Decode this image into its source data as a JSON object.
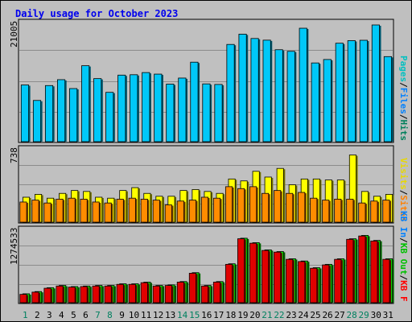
{
  "title": "Daily usage for October 2023",
  "chart_data": [
    {
      "type": "bar",
      "panel": "top",
      "categories": [
        "1",
        "2",
        "3",
        "4",
        "5",
        "6",
        "7",
        "8",
        "9",
        "10",
        "11",
        "12",
        "13",
        "14",
        "15",
        "16",
        "17",
        "18",
        "19",
        "20",
        "21",
        "22",
        "23",
        "24",
        "25",
        "26",
        "27",
        "28",
        "29",
        "30",
        "31"
      ],
      "weekend_days": [
        "1",
        "7",
        "8",
        "14",
        "15",
        "21",
        "22",
        "28",
        "29"
      ],
      "ymax_label": "21005",
      "ylim": [
        0,
        21005
      ],
      "legend": [
        {
          "name": "Pages",
          "color": "#00c0c0"
        },
        {
          "name": "Files",
          "color": "#0080ff"
        },
        {
          "name": "Hits",
          "color": "#00805c"
        }
      ],
      "series": [
        {
          "name": "Hits",
          "color": "#00c8f8",
          "values": [
            10210,
            7420,
            10100,
            11160,
            9560,
            13670,
            11350,
            8880,
            11980,
            12050,
            12440,
            12160,
            10360,
            11450,
            14310,
            10400,
            10300,
            17500,
            19350,
            18570,
            18270,
            16550,
            16260,
            20420,
            14170,
            14790,
            17720,
            18180,
            18250,
            21005,
            15310
          ]
        }
      ]
    },
    {
      "type": "bar",
      "panel": "middle",
      "categories": [
        "1",
        "2",
        "3",
        "4",
        "5",
        "6",
        "7",
        "8",
        "9",
        "10",
        "11",
        "12",
        "13",
        "14",
        "15",
        "16",
        "17",
        "18",
        "19",
        "20",
        "21",
        "22",
        "23",
        "24",
        "25",
        "26",
        "27",
        "28",
        "29",
        "30",
        "31"
      ],
      "ymax_label": "738",
      "ylim": [
        0,
        738
      ],
      "legend": [
        {
          "name": "Visits",
          "color": "#e8d800"
        },
        {
          "name": "Sites",
          "color": "#ff8000"
        }
      ],
      "series": [
        {
          "name": "Visits",
          "color": "#ffff00",
          "values": [
            260,
            290,
            250,
            300,
            330,
            320,
            260,
            250,
            330,
            360,
            300,
            270,
            270,
            330,
            340,
            320,
            300,
            450,
            430,
            530,
            470,
            560,
            390,
            450,
            450,
            440,
            440,
            700,
            320,
            270,
            290
          ]
        },
        {
          "name": "Sites",
          "color": "#ff8c00",
          "values": [
            210,
            230,
            200,
            240,
            250,
            240,
            210,
            200,
            240,
            250,
            240,
            230,
            180,
            220,
            230,
            260,
            250,
            370,
            350,
            370,
            300,
            330,
            300,
            310,
            250,
            230,
            240,
            240,
            200,
            220,
            230
          ]
        }
      ]
    },
    {
      "type": "bar",
      "panel": "bottom",
      "categories": [
        "1",
        "2",
        "3",
        "4",
        "5",
        "6",
        "7",
        "8",
        "9",
        "10",
        "11",
        "12",
        "13",
        "14",
        "15",
        "16",
        "17",
        "18",
        "19",
        "20",
        "21",
        "22",
        "23",
        "24",
        "25",
        "26",
        "27",
        "28",
        "29",
        "30",
        "31"
      ],
      "ymax_label": "1274533",
      "ylim": [
        0,
        1274533
      ],
      "legend": [
        {
          "name": "KB In",
          "color": "#0080ff"
        },
        {
          "name": "KB Out",
          "color": "#00c000"
        },
        {
          "name": "KB F",
          "color": "#ff0000"
        }
      ],
      "series": [
        {
          "name": "KB Out",
          "color": "#00e000",
          "values": [
            160000,
            200000,
            270000,
            310000,
            290000,
            300000,
            310000,
            310000,
            340000,
            340000,
            370000,
            310000,
            320000,
            380000,
            540000,
            310000,
            380000,
            700000,
            1160000,
            1080000,
            950000,
            920000,
            790000,
            750000,
            630000,
            690000,
            790000,
            1150000,
            1210000,
            1120000,
            790000
          ]
        },
        {
          "name": "KB F",
          "color": "#e00000",
          "values": [
            150000,
            190000,
            260000,
            300000,
            280000,
            290000,
            300000,
            300000,
            330000,
            330000,
            360000,
            300000,
            310000,
            370000,
            530000,
            300000,
            370000,
            690000,
            1150000,
            1070000,
            940000,
            910000,
            780000,
            740000,
            620000,
            680000,
            780000,
            1140000,
            1200000,
            1110000,
            780000
          ]
        }
      ]
    }
  ]
}
